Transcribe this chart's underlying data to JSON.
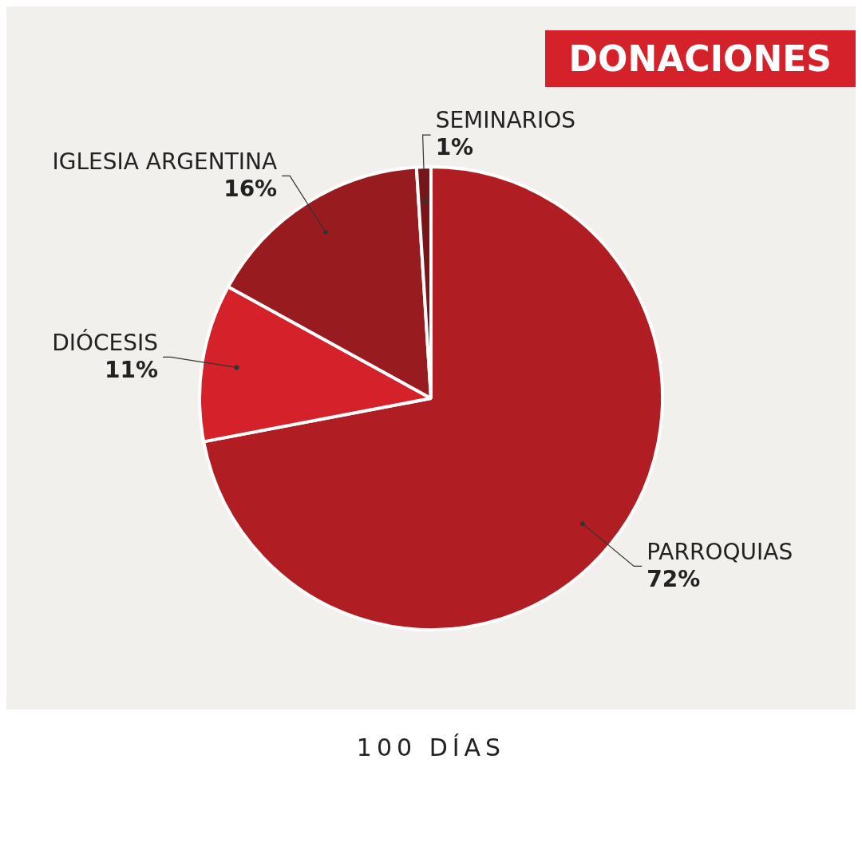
{
  "chart_data": {
    "type": "pie",
    "title": "DONACIONES",
    "categories": [
      "PARROQUIAS",
      "DIÓCESIS",
      "IGLESIA ARGENTINA",
      "SEMINARIOS"
    ],
    "values": [
      72,
      11,
      16,
      1
    ],
    "colors": [
      "#b01e24",
      "#d4212a",
      "#981b20",
      "#7a1418"
    ],
    "value_labels": [
      "72%",
      "11%",
      "16%",
      "1%"
    ],
    "legend": false,
    "annotations": [
      "100 DÍAS"
    ]
  }
}
